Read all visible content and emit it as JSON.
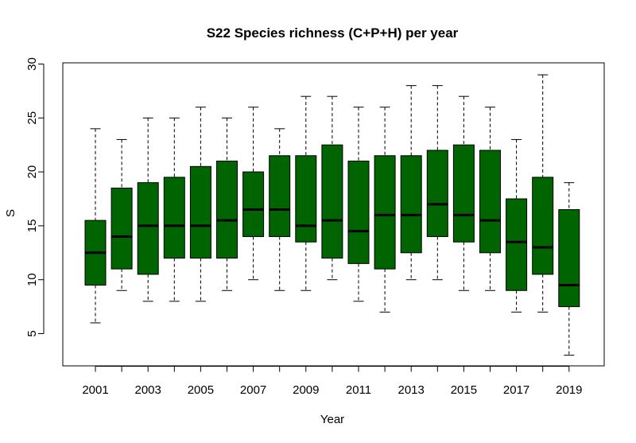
{
  "chart_data": {
    "type": "boxplot",
    "title": "S22 Species richness (C+P+H) per year",
    "xlabel": "Year",
    "ylabel": "S",
    "ylim": [
      2,
      30
    ],
    "yticks": [
      5,
      10,
      15,
      20,
      25,
      30
    ],
    "categories": [
      "2001",
      "2002",
      "2003",
      "2004",
      "2005",
      "2006",
      "2007",
      "2008",
      "2009",
      "2010",
      "2011",
      "2012",
      "2013",
      "2014",
      "2015",
      "2016",
      "2017",
      "2018",
      "2019"
    ],
    "x_tick_labels_shown": [
      "2001",
      "2003",
      "2005",
      "2007",
      "2009",
      "2011",
      "2013",
      "2015",
      "2017",
      "2019"
    ],
    "box_color": "#006400",
    "boxes": [
      {
        "year": "2001",
        "min": 6,
        "q1": 9.5,
        "median": 12.5,
        "q3": 15.5,
        "max": 24
      },
      {
        "year": "2002",
        "min": 9,
        "q1": 11,
        "median": 14,
        "q3": 18.5,
        "max": 23
      },
      {
        "year": "2003",
        "min": 8,
        "q1": 10.5,
        "median": 15,
        "q3": 19,
        "max": 25
      },
      {
        "year": "2004",
        "min": 8,
        "q1": 12,
        "median": 15,
        "q3": 19.5,
        "max": 25
      },
      {
        "year": "2005",
        "min": 8,
        "q1": 12,
        "median": 15,
        "q3": 20.5,
        "max": 26
      },
      {
        "year": "2006",
        "min": 9,
        "q1": 12,
        "median": 15.5,
        "q3": 21,
        "max": 25
      },
      {
        "year": "2007",
        "min": 10,
        "q1": 14,
        "median": 16.5,
        "q3": 20,
        "max": 26
      },
      {
        "year": "2008",
        "min": 9,
        "q1": 14,
        "median": 16.5,
        "q3": 21.5,
        "max": 24
      },
      {
        "year": "2009",
        "min": 9,
        "q1": 13.5,
        "median": 15,
        "q3": 21.5,
        "max": 27
      },
      {
        "year": "2010",
        "min": 10,
        "q1": 12,
        "median": 15.5,
        "q3": 22.5,
        "max": 27
      },
      {
        "year": "2011",
        "min": 8,
        "q1": 11.5,
        "median": 14.5,
        "q3": 21,
        "max": 26
      },
      {
        "year": "2012",
        "min": 7,
        "q1": 11,
        "median": 16,
        "q3": 21.5,
        "max": 26
      },
      {
        "year": "2013",
        "min": 10,
        "q1": 12.5,
        "median": 16,
        "q3": 21.5,
        "max": 28
      },
      {
        "year": "2014",
        "min": 10,
        "q1": 14,
        "median": 17,
        "q3": 22,
        "max": 28
      },
      {
        "year": "2015",
        "min": 9,
        "q1": 13.5,
        "median": 16,
        "q3": 22.5,
        "max": 27
      },
      {
        "year": "2016",
        "min": 9,
        "q1": 12.5,
        "median": 15.5,
        "q3": 22,
        "max": 26
      },
      {
        "year": "2017",
        "min": 7,
        "q1": 9,
        "median": 13.5,
        "q3": 17.5,
        "max": 23
      },
      {
        "year": "2018",
        "min": 7,
        "q1": 10.5,
        "median": 13,
        "q3": 19.5,
        "max": 29
      },
      {
        "year": "2019",
        "min": 3,
        "q1": 7.5,
        "median": 9.5,
        "q3": 16.5,
        "max": 19
      }
    ]
  }
}
